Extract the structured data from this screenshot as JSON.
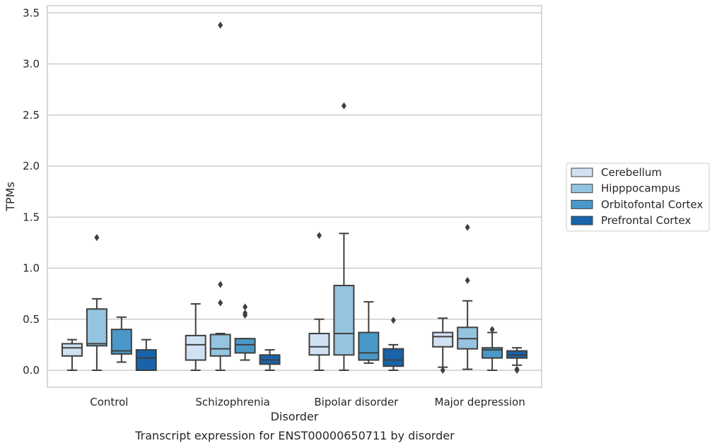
{
  "chart_data": {
    "type": "box",
    "title": "Transcript expression for ENST00000650711 by disorder",
    "xlabel": "Disorder",
    "ylabel": "TPMs",
    "ylim": [
      -0.17,
      3.56
    ],
    "yticks": [
      "0.0",
      "0.5",
      "1.0",
      "1.5",
      "2.0",
      "2.5",
      "3.0",
      "3.5"
    ],
    "grid": true,
    "legend_position": "right",
    "categories": [
      "Control",
      "Schizophrenia",
      "Bipolar disorder",
      "Major depression"
    ],
    "series": [
      {
        "name": "Cerebellum",
        "color": "#d0e1f2",
        "boxes": [
          {
            "whislo": 0.0,
            "q1": 0.14,
            "med": 0.22,
            "q3": 0.26,
            "whishi": 0.3,
            "fliers": []
          },
          {
            "whislo": 0.0,
            "q1": 0.1,
            "med": 0.25,
            "q3": 0.34,
            "whishi": 0.65,
            "fliers": []
          },
          {
            "whislo": 0.0,
            "q1": 0.15,
            "med": 0.23,
            "q3": 0.36,
            "whishi": 0.5,
            "fliers": [
              1.32
            ]
          },
          {
            "whislo": 0.03,
            "q1": 0.23,
            "med": 0.33,
            "q3": 0.37,
            "whishi": 0.51,
            "fliers": [
              0.0
            ]
          }
        ]
      },
      {
        "name": "Hipppocampus",
        "color": "#94c4df",
        "boxes": [
          {
            "whislo": 0.0,
            "q1": 0.24,
            "med": 0.26,
            "q3": 0.6,
            "whishi": 0.7,
            "fliers": [
              1.3
            ]
          },
          {
            "whislo": 0.0,
            "q1": 0.14,
            "med": 0.21,
            "q3": 0.35,
            "whishi": 0.36,
            "fliers": [
              0.66,
              0.84,
              3.38
            ]
          },
          {
            "whislo": 0.0,
            "q1": 0.15,
            "med": 0.36,
            "q3": 0.83,
            "whishi": 1.34,
            "fliers": [
              2.59
            ]
          },
          {
            "whislo": 0.01,
            "q1": 0.21,
            "med": 0.31,
            "q3": 0.42,
            "whishi": 0.68,
            "fliers": [
              0.88,
              1.4
            ]
          }
        ]
      },
      {
        "name": "Orbitofontal Cortex",
        "color": "#4a98c9",
        "boxes": [
          {
            "whislo": 0.08,
            "q1": 0.16,
            "med": 0.19,
            "q3": 0.4,
            "whishi": 0.52,
            "fliers": []
          },
          {
            "whislo": 0.1,
            "q1": 0.17,
            "med": 0.25,
            "q3": 0.31,
            "whishi": 0.31,
            "fliers": [
              0.54,
              0.56,
              0.62
            ]
          },
          {
            "whislo": 0.07,
            "q1": 0.1,
            "med": 0.17,
            "q3": 0.37,
            "whishi": 0.67,
            "fliers": []
          },
          {
            "whislo": 0.0,
            "q1": 0.12,
            "med": 0.2,
            "q3": 0.22,
            "whishi": 0.37,
            "fliers": [
              0.4
            ]
          }
        ]
      },
      {
        "name": "Prefrontal Cortex",
        "color": "#1764ab",
        "boxes": [
          {
            "whislo": 0.0,
            "q1": 0.0,
            "med": 0.12,
            "q3": 0.2,
            "whishi": 0.3,
            "fliers": []
          },
          {
            "whislo": 0.0,
            "q1": 0.06,
            "med": 0.1,
            "q3": 0.15,
            "whishi": 0.2,
            "fliers": []
          },
          {
            "whislo": 0.0,
            "q1": 0.04,
            "med": 0.1,
            "q3": 0.21,
            "whishi": 0.25,
            "fliers": [
              0.49
            ]
          },
          {
            "whislo": 0.05,
            "q1": 0.12,
            "med": 0.15,
            "q3": 0.19,
            "whishi": 0.22,
            "fliers": [
              0.0,
              0.01
            ]
          }
        ]
      }
    ]
  }
}
